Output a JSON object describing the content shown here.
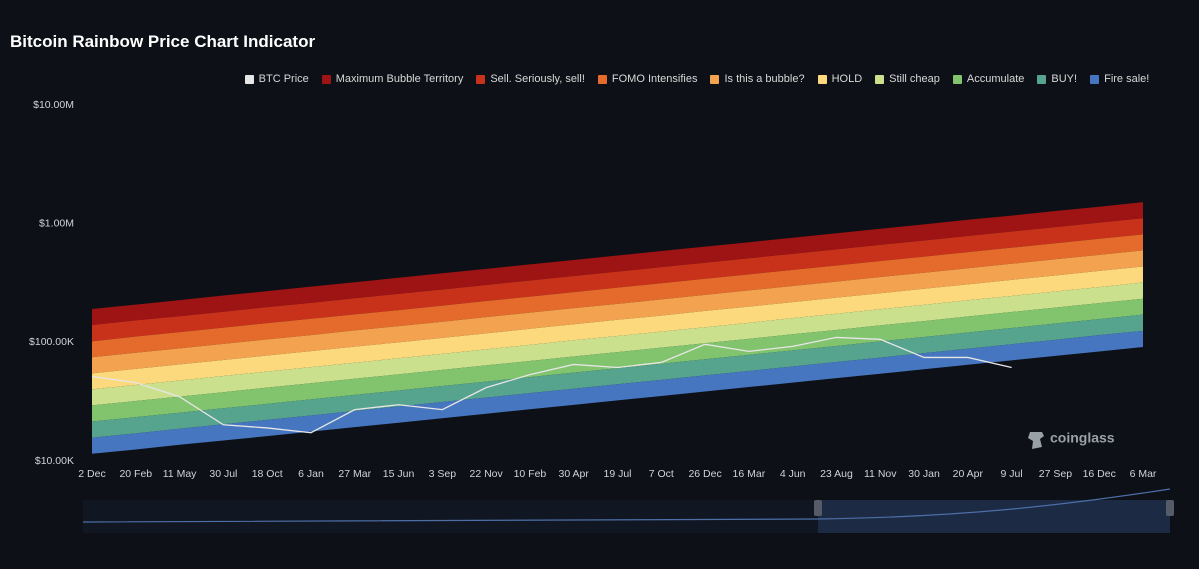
{
  "chart_data": {
    "type": "rainbow",
    "title": "Bitcoin Rainbow Price Chart Indicator",
    "watermark": "coinglass",
    "categories": [
      "2 Dec",
      "20 Feb",
      "11 May",
      "30 Jul",
      "18 Oct",
      "6 Jan",
      "27 Mar",
      "15 Jun",
      "3 Sep",
      "22 Nov",
      "10 Feb",
      "30 Apr",
      "19 Jul",
      "7 Oct",
      "26 Dec",
      "16 Mar",
      "4 Jun",
      "23 Aug",
      "11 Nov",
      "30 Jan",
      "20 Apr",
      "9 Jul",
      "27 Sep",
      "16 Dec",
      "6 Mar"
    ],
    "log_scale": true,
    "grid": false,
    "ylim": [
      10000,
      10000000
    ],
    "yticks": [
      {
        "value": 10000,
        "label": "$10.00K"
      },
      {
        "value": 100000,
        "label": "$100.00K"
      },
      {
        "value": 1000000,
        "label": "$1.00M"
      },
      {
        "value": 10000000,
        "label": "$10.00M"
      }
    ],
    "series": [
      {
        "name": "BTC Price",
        "color": "#e6e6e6",
        "values": [
          51500,
          45800,
          34800,
          20200,
          19000,
          17300,
          27100,
          29800,
          27100,
          41500,
          53500,
          65100,
          61400,
          67700,
          96200,
          83900,
          92500,
          110000,
          106000,
          74600,
          74600,
          61400,
          null,
          null,
          null
        ]
      },
      {
        "name": "Maximum Bubble Territory",
        "color": "#9e1313",
        "values": [
          191000,
          208000,
          227000,
          248000,
          270000,
          295000,
          321000,
          350000,
          382000,
          416000,
          454000,
          494000,
          539000,
          588000,
          641000,
          698000,
          761000,
          830000,
          905000,
          987000,
          1080000,
          1170000,
          1280000,
          1390000,
          1520000
        ]
      },
      {
        "name": "Sell. Seriously, sell!",
        "color": "#c8321b",
        "values": [
          140000,
          153000,
          166000,
          181000,
          198000,
          215000,
          235000,
          256000,
          279000,
          304000,
          332000,
          362000,
          394000,
          430000,
          469000,
          511000,
          557000,
          607000,
          662000,
          722000,
          787000,
          858000,
          935000,
          1020000,
          1110000
        ]
      },
      {
        "name": "FOMO Intensifies",
        "color": "#e46b2c",
        "values": [
          102000,
          112000,
          122000,
          133000,
          145000,
          158000,
          172000,
          187000,
          204000,
          223000,
          243000,
          265000,
          289000,
          315000,
          343000,
          374000,
          408000,
          444000,
          485000,
          528000,
          576000,
          628000,
          684000,
          746000,
          813000
        ]
      },
      {
        "name": "Is this a bubble?",
        "color": "#f3a34f",
        "values": [
          74900,
          81700,
          89000,
          97100,
          106000,
          115000,
          126000,
          137000,
          149000,
          163000,
          178000,
          194000,
          211000,
          230000,
          251000,
          274000,
          298000,
          325000,
          355000,
          386000,
          421000,
          459000,
          501000,
          546000,
          595000
        ]
      },
      {
        "name": "HOLD",
        "color": "#fcd97c",
        "values": [
          54800,
          59800,
          65200,
          71000,
          77400,
          84400,
          92000,
          100000,
          109000,
          119000,
          130000,
          142000,
          155000,
          168000,
          184000,
          200000,
          218000,
          238000,
          259000,
          283000,
          308000,
          336000,
          366000,
          400000,
          436000
        ]
      },
      {
        "name": "Still cheap",
        "color": "#cbe08c",
        "values": [
          40100,
          43700,
          47700,
          52000,
          56700,
          61800,
          67300,
          73400,
          80000,
          87300,
          95100,
          104000,
          113000,
          123000,
          134000,
          146000,
          160000,
          174000,
          190000,
          207000,
          226000,
          246000,
          268000,
          292000,
          319000
        ]
      },
      {
        "name": "Accumulate",
        "color": "#82c46d",
        "values": [
          29400,
          32000,
          34900,
          38000,
          41500,
          45200,
          49300,
          53700,
          58600,
          63900,
          69600,
          75900,
          82700,
          90200,
          98300,
          107000,
          117000,
          127000,
          139000,
          151000,
          165000,
          180000,
          196000,
          214000,
          233000
        ]
      },
      {
        "name": "BUY!",
        "color": "#56a48d",
        "values": [
          21500,
          23400,
          25500,
          27800,
          30300,
          33100,
          36100,
          39300,
          42900,
          46700,
          50900,
          55500,
          60500,
          66000,
          72000,
          78400,
          85500,
          93200,
          102000,
          111000,
          121000,
          132000,
          144000,
          157000,
          171000
        ]
      },
      {
        "name": "Fire sale!",
        "color": "#4676bf",
        "values": [
          15700,
          17100,
          18700,
          20400,
          22200,
          24200,
          26400,
          28800,
          31400,
          34200,
          37300,
          40600,
          44300,
          48300,
          52700,
          57400,
          62600,
          68200,
          74400,
          81100,
          88400,
          96400,
          105000,
          115000,
          125000
        ],
        "low": [
          11500,
          12500,
          13700,
          14900,
          16200,
          17700,
          19300,
          21000,
          22900,
          25000,
          27300,
          29700,
          32400,
          35300,
          38500,
          42000,
          45800,
          49900,
          54400,
          59300,
          64700,
          70500,
          76900,
          83800,
          91400
        ]
      }
    ]
  }
}
